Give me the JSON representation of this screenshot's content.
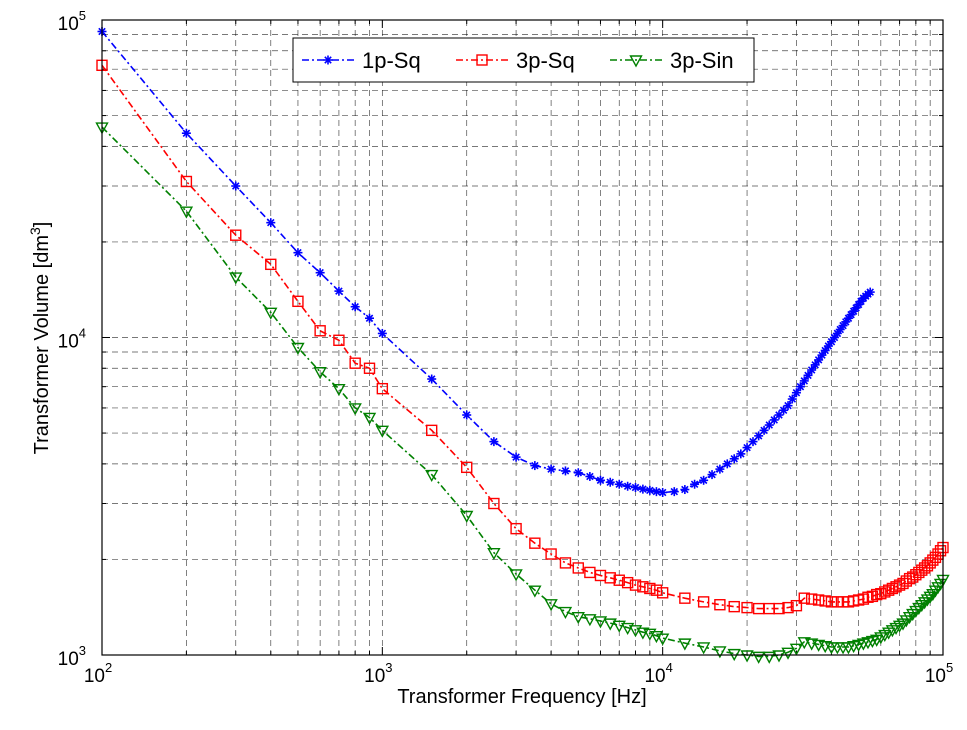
{
  "chart_data": {
    "type": "line",
    "xlabel": "Transformer Frequency [Hz]",
    "ylabel": "Transformer Volume [dm",
    "ylabel_sup": "3",
    "ylabel_end": "]",
    "x_scale": "log",
    "y_scale": "log",
    "xlim": [
      100,
      100000
    ],
    "ylim": [
      1000,
      100000
    ],
    "x_ticks": [
      {
        "base": "10",
        "exp": "2"
      },
      {
        "base": "10",
        "exp": "3"
      },
      {
        "base": "10",
        "exp": "4"
      },
      {
        "base": "10",
        "exp": "5"
      }
    ],
    "y_ticks": [
      {
        "base": "10",
        "exp": "3"
      },
      {
        "base": "10",
        "exp": "4"
      },
      {
        "base": "10",
        "exp": "5"
      }
    ],
    "grid": true,
    "legend_position": "top-center",
    "series": [
      {
        "name": "1p-Sq",
        "color": "#0000ff",
        "marker": "star",
        "line": "dash-dot",
        "x": [
          100,
          200,
          300,
          400,
          500,
          600,
          700,
          800,
          900,
          1000,
          1500,
          2000,
          2500,
          3000,
          3500,
          4000,
          4500,
          5000,
          5500,
          6000,
          6500,
          7000,
          7500,
          8000,
          8500,
          9000,
          9500,
          10000,
          11000,
          12000,
          13000,
          14000,
          15000,
          16000,
          17000,
          18000,
          19000,
          20000,
          21000,
          22000,
          23000,
          24000,
          25000,
          26000,
          27000,
          28000,
          29000,
          30000,
          31000,
          32000,
          33000,
          34000,
          35000,
          36000,
          37000,
          38000,
          39000,
          40000,
          41000,
          42000,
          43000,
          44000,
          45000,
          46000,
          47000,
          48000,
          49000,
          50000,
          51000,
          52000,
          53000,
          54000,
          55000
        ],
        "y": [
          92000,
          44000,
          30000,
          23000,
          18500,
          16000,
          14000,
          12500,
          11500,
          10300,
          7400,
          5700,
          4700,
          4200,
          3950,
          3850,
          3800,
          3750,
          3650,
          3550,
          3500,
          3450,
          3400,
          3370,
          3330,
          3300,
          3270,
          3250,
          3270,
          3320,
          3450,
          3550,
          3700,
          3850,
          4000,
          4150,
          4300,
          4500,
          4700,
          4900,
          5100,
          5300,
          5500,
          5700,
          5900,
          6100,
          6400,
          6700,
          7000,
          7300,
          7600,
          7900,
          8200,
          8500,
          8800,
          9100,
          9400,
          9700,
          10000,
          10300,
          10600,
          10900,
          11200,
          11500,
          11800,
          12100,
          12400,
          12700,
          13000,
          13300,
          13500,
          13700,
          13900
        ]
      },
      {
        "name": "3p-Sq",
        "color": "#ff0000",
        "marker": "square",
        "line": "dash-dot",
        "x": [
          100,
          200,
          300,
          400,
          500,
          600,
          700,
          800,
          900,
          1000,
          1500,
          2000,
          2500,
          3000,
          3500,
          4000,
          4500,
          5000,
          5500,
          6000,
          6500,
          7000,
          7500,
          8000,
          8500,
          9000,
          9500,
          10000,
          12000,
          14000,
          16000,
          18000,
          20000,
          22000,
          24000,
          26000,
          28000,
          30000,
          32000,
          34000,
          36000,
          38000,
          40000,
          42000,
          44000,
          46000,
          48000,
          50000,
          52000,
          54000,
          56000,
          58000,
          60000,
          62000,
          64000,
          66000,
          68000,
          70000,
          72000,
          74000,
          76000,
          78000,
          80000,
          82000,
          84000,
          86000,
          88000,
          90000,
          92000,
          94000,
          96000,
          98000,
          100000
        ],
        "y": [
          72000,
          31000,
          21000,
          17000,
          13000,
          10500,
          9800,
          8300,
          8000,
          6900,
          5100,
          3900,
          3000,
          2500,
          2250,
          2080,
          1950,
          1880,
          1820,
          1780,
          1750,
          1720,
          1690,
          1660,
          1640,
          1620,
          1600,
          1570,
          1510,
          1470,
          1440,
          1420,
          1410,
          1400,
          1400,
          1400,
          1410,
          1430,
          1510,
          1500,
          1490,
          1480,
          1470,
          1470,
          1470,
          1470,
          1480,
          1490,
          1500,
          1520,
          1530,
          1550,
          1560,
          1580,
          1600,
          1620,
          1640,
          1660,
          1680,
          1710,
          1740,
          1760,
          1790,
          1820,
          1850,
          1880,
          1910,
          1950,
          1990,
          2030,
          2080,
          2130,
          2180
        ]
      },
      {
        "name": "3p-Sin",
        "color": "#008000",
        "marker": "triangle-down",
        "line": "dash-dot",
        "x": [
          100,
          200,
          300,
          400,
          500,
          600,
          700,
          800,
          900,
          1000,
          1500,
          2000,
          2500,
          3000,
          3500,
          4000,
          4500,
          5000,
          5500,
          6000,
          6500,
          7000,
          7500,
          8000,
          8500,
          9000,
          9500,
          10000,
          12000,
          14000,
          16000,
          18000,
          20000,
          22000,
          24000,
          26000,
          28000,
          30000,
          32000,
          34000,
          36000,
          38000,
          40000,
          42000,
          44000,
          46000,
          48000,
          50000,
          52000,
          54000,
          56000,
          58000,
          60000,
          62000,
          64000,
          66000,
          68000,
          70000,
          72000,
          74000,
          76000,
          78000,
          80000,
          82000,
          84000,
          86000,
          88000,
          90000,
          92000,
          94000,
          96000,
          98000,
          100000
        ],
        "y": [
          46000,
          25000,
          15500,
          12000,
          9300,
          7800,
          6900,
          6000,
          5600,
          5100,
          3700,
          2750,
          2100,
          1800,
          1600,
          1450,
          1370,
          1320,
          1300,
          1280,
          1260,
          1240,
          1220,
          1200,
          1180,
          1170,
          1150,
          1130,
          1090,
          1060,
          1030,
          1010,
          1000,
          990,
          990,
          1000,
          1020,
          1050,
          1100,
          1090,
          1080,
          1070,
          1060,
          1060,
          1060,
          1060,
          1070,
          1080,
          1090,
          1100,
          1110,
          1120,
          1140,
          1160,
          1180,
          1200,
          1220,
          1240,
          1260,
          1290,
          1320,
          1350,
          1380,
          1410,
          1440,
          1470,
          1500,
          1530,
          1560,
          1600,
          1640,
          1680,
          1730
        ]
      }
    ]
  }
}
